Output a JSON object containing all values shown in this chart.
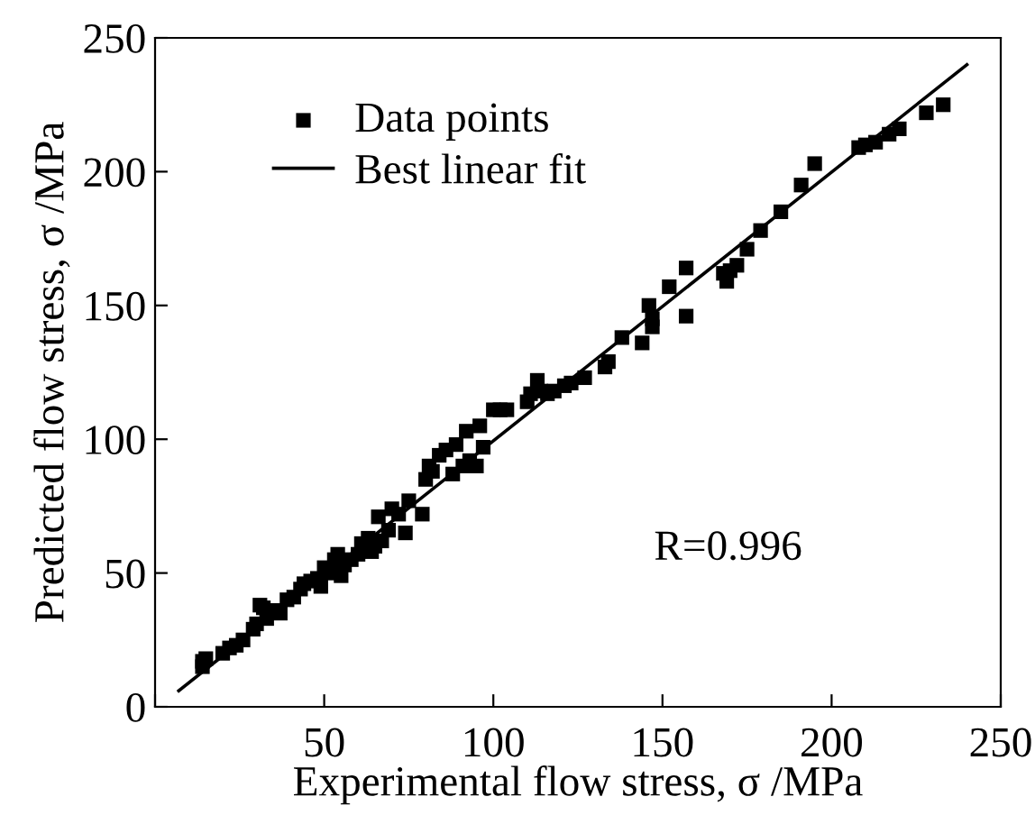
{
  "chart_data": {
    "type": "scatter",
    "xlabel": "Experimental flow stress, σ /MPa",
    "ylabel": "Predicted flow stress, σ /MPa",
    "annotations": [
      "R=0.996"
    ],
    "series": [
      {
        "name": "Data points",
        "color": "#000000",
        "marker": "square",
        "x": [
          14,
          14,
          15,
          20,
          22,
          24,
          26,
          29,
          30,
          31,
          32,
          33,
          35,
          37,
          39,
          41,
          43,
          44,
          46,
          48,
          49,
          50,
          52,
          53,
          54,
          55,
          56,
          58,
          60,
          61,
          63,
          64,
          65,
          66,
          67,
          69,
          70,
          72,
          74,
          75,
          79,
          80,
          81,
          82,
          84,
          86,
          88,
          89,
          91,
          92,
          93,
          95,
          96,
          97,
          100,
          102,
          104,
          110,
          111,
          113,
          114,
          116,
          118,
          121,
          123,
          127,
          133,
          134,
          138,
          144,
          146,
          147,
          147,
          152,
          157,
          157,
          168,
          169,
          170,
          172,
          175,
          179,
          185,
          191,
          195,
          208,
          210,
          213,
          217,
          220,
          228,
          233
        ],
        "values": [
          15,
          17,
          18,
          20,
          22,
          23,
          25,
          29,
          31,
          38,
          37,
          33,
          36,
          35,
          40,
          41,
          44,
          46,
          47,
          48,
          45,
          52,
          50,
          55,
          57,
          49,
          53,
          55,
          57,
          61,
          63,
          58,
          60,
          71,
          62,
          66,
          74,
          72,
          65,
          77,
          72,
          85,
          90,
          88,
          94,
          96,
          87,
          98,
          90,
          103,
          92,
          90,
          105,
          97,
          111,
          111,
          111,
          114,
          117,
          122,
          118,
          117,
          118,
          120,
          121,
          123,
          127,
          129,
          138,
          136,
          150,
          145,
          142,
          157,
          164,
          146,
          162,
          159,
          163,
          165,
          171,
          178,
          185,
          195,
          203,
          209,
          210,
          211,
          214,
          216,
          222,
          225
        ]
      },
      {
        "name": "Best linear fit",
        "type": "line",
        "color": "#000000",
        "line_style": "solid",
        "x": [
          7,
          240
        ],
        "values": [
          6,
          240
        ]
      }
    ],
    "xlim": [
      0,
      250
    ],
    "ylim": [
      0,
      250
    ],
    "xticks": [
      {
        "value": 0,
        "label": null
      },
      50,
      100,
      150,
      200,
      250
    ],
    "yticks": [
      0,
      50,
      100,
      150,
      200,
      250
    ],
    "grid": false,
    "legend": "top left"
  }
}
